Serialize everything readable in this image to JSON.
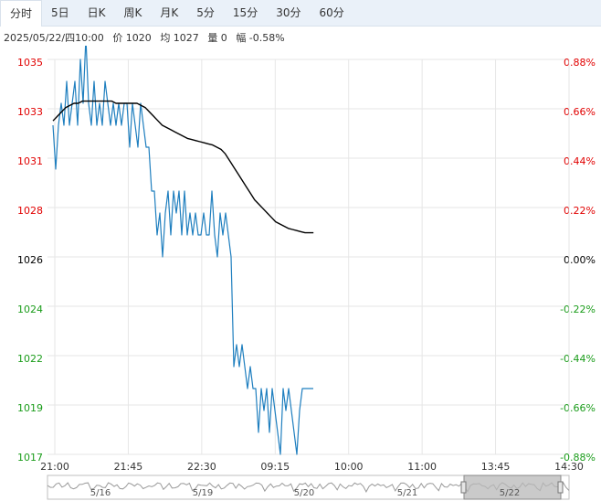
{
  "tabs": [
    {
      "label": "分时",
      "active": true
    },
    {
      "label": "5日",
      "active": false
    },
    {
      "label": "日K",
      "active": false
    },
    {
      "label": "周K",
      "active": false
    },
    {
      "label": "月K",
      "active": false
    },
    {
      "label": "5分",
      "active": false
    },
    {
      "label": "15分",
      "active": false
    },
    {
      "label": "30分",
      "active": false
    },
    {
      "label": "60分",
      "active": false
    }
  ],
  "info": {
    "datetime": "2025/05/22/四10:00",
    "price": "价 1020",
    "avg": "均 1027",
    "volume": "量 0",
    "change": "幅 -0.58%"
  },
  "colors": {
    "price_line": "#1f7fbf",
    "avg_line": "#000000",
    "up": "#e10000",
    "down": "#1a9c1a",
    "flat": "#000000",
    "grid": "#e6e6e6"
  },
  "chart_data": {
    "type": "line",
    "y_ticks_left": [
      "1035",
      "1033",
      "1031",
      "1028",
      "1026",
      "1024",
      "1022",
      "1019",
      "1017"
    ],
    "y_ticks_right": [
      "0.88%",
      "0.66%",
      "0.44%",
      "0.22%",
      "0.00%",
      "-0.22%",
      "-0.44%",
      "-0.66%",
      "-0.88%"
    ],
    "x_ticks": [
      "21:00",
      "21:45",
      "22:30",
      "09:15",
      "10:00",
      "11:00",
      "13:45",
      "14:30"
    ],
    "ylim": [
      1017,
      1035
    ],
    "prev_close": 1026,
    "series": [
      {
        "key": "price",
        "values": [
          1032,
          1030,
          1032,
          1033,
          1032,
          1034,
          1032,
          1033,
          1034,
          1032,
          1035,
          1033,
          1036,
          1033,
          1032,
          1034,
          1032,
          1033,
          1032,
          1034,
          1033,
          1032,
          1033,
          1032,
          1033,
          1032,
          1033,
          1033,
          1031,
          1033,
          1032,
          1031,
          1033,
          1032,
          1031,
          1031,
          1029,
          1029,
          1027,
          1028,
          1026,
          1028,
          1029,
          1027,
          1029,
          1028,
          1029,
          1027,
          1029,
          1027,
          1028,
          1027,
          1028,
          1027,
          1027,
          1028,
          1027,
          1027,
          1029,
          1027,
          1026,
          1028,
          1027,
          1028,
          1027,
          1026,
          1021,
          1022,
          1021,
          1022,
          1021,
          1020,
          1021,
          1020,
          1020,
          1018,
          1020,
          1019,
          1020,
          1018,
          1020,
          1019,
          1018,
          1017,
          1020,
          1019,
          1020,
          1019,
          1018,
          1017,
          1019,
          1020,
          1020,
          1020,
          1020,
          1020
        ]
      },
      {
        "key": "avg",
        "values": [
          1032.2,
          1032.4,
          1032.6,
          1032.8,
          1032.9,
          1033.0,
          1033.0,
          1033.1,
          1033.1,
          1033.1,
          1033.1,
          1033.1,
          1033.1,
          1033.1,
          1033.1,
          1033.0,
          1033.0,
          1033.0,
          1033.0,
          1033.0,
          1033.0,
          1032.9,
          1032.8,
          1032.6,
          1032.4,
          1032.2,
          1032.0,
          1031.9,
          1031.8,
          1031.7,
          1031.6,
          1031.5,
          1031.4,
          1031.35,
          1031.3,
          1031.25,
          1031.2,
          1031.15,
          1031.1,
          1031.0,
          1030.9,
          1030.7,
          1030.4,
          1030.1,
          1029.8,
          1029.5,
          1029.2,
          1028.9,
          1028.6,
          1028.4,
          1028.2,
          1028.0,
          1027.8,
          1027.6,
          1027.5,
          1027.4,
          1027.3,
          1027.25,
          1027.2,
          1027.15,
          1027.1,
          1027.1,
          1027.1
        ]
      }
    ],
    "navigator": {
      "labels": [
        "5/16",
        "5/19",
        "5/20",
        "5/21",
        "5/22"
      ]
    }
  }
}
